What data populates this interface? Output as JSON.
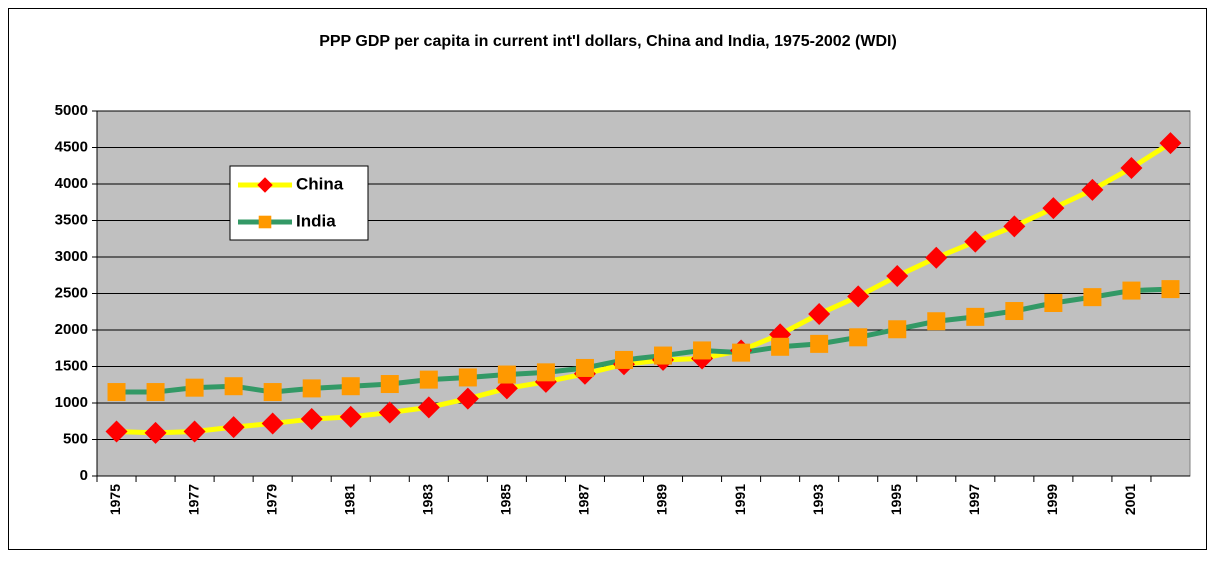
{
  "chart_data": {
    "type": "line",
    "title": "PPP GDP per capita in current int'l dollars, China and India, 1975-2002 (WDI)",
    "categories": [
      "1975",
      null,
      "1977",
      null,
      "1979",
      null,
      "1981",
      null,
      "1983",
      null,
      "1985",
      null,
      "1987",
      null,
      "1989",
      null,
      "1991",
      null,
      "1993",
      null,
      "1995",
      null,
      "1997",
      null,
      "1999",
      null,
      "2001",
      null
    ],
    "series": [
      {
        "name": "China",
        "color": "#ffff00",
        "marker": "diamond",
        "marker_color": "#ff0000",
        "values": [
          610,
          590,
          610,
          670,
          720,
          780,
          810,
          870,
          940,
          1060,
          1200,
          1290,
          1400,
          1530,
          1590,
          1610,
          1720,
          1940,
          2220,
          2460,
          2740,
          2990,
          3210,
          3420,
          3670,
          3920,
          4220,
          4560
        ]
      },
      {
        "name": "India",
        "color": "#339966",
        "marker": "square",
        "marker_color": "#ff9900",
        "values": [
          1150,
          1150,
          1210,
          1230,
          1150,
          1200,
          1230,
          1260,
          1320,
          1350,
          1390,
          1420,
          1480,
          1590,
          1650,
          1720,
          1690,
          1770,
          1810,
          1900,
          2010,
          2120,
          2180,
          2260,
          2370,
          2450,
          2540,
          2560
        ]
      }
    ],
    "ylim": [
      0,
      5000
    ],
    "yticks": [
      0,
      500,
      1000,
      1500,
      2000,
      2500,
      3000,
      3500,
      4000,
      4500,
      5000
    ],
    "grid": true,
    "legend": "upper left",
    "plot_background": "#c0c0c0"
  }
}
